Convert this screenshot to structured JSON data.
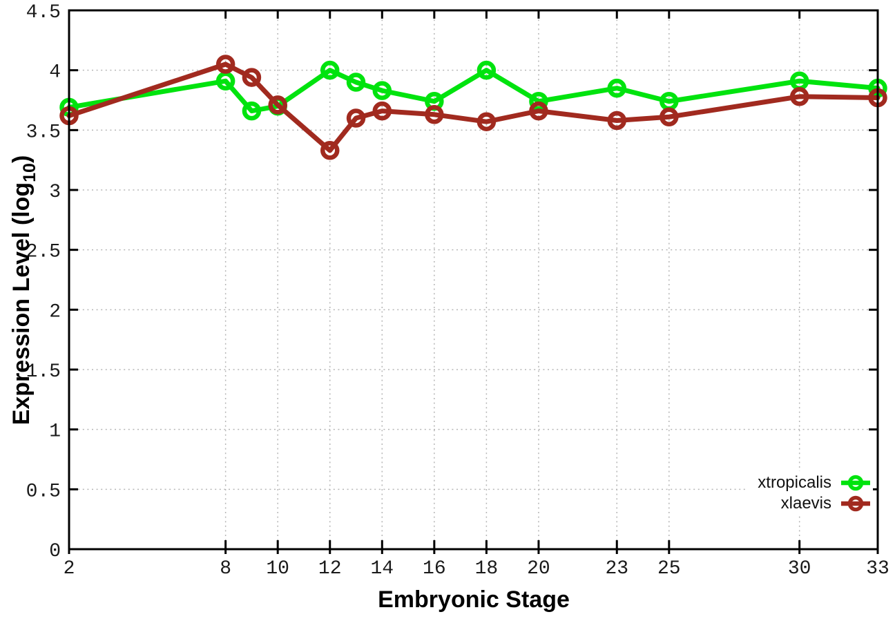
{
  "chart_data": {
    "type": "line",
    "title": "",
    "xlabel": "Embryonic Stage",
    "ylabel_parts": {
      "prefix": "Expression Level (log",
      "sub": "10",
      "suffix": ")"
    },
    "x": [
      2,
      8,
      9,
      10,
      12,
      13,
      14,
      16,
      18,
      20,
      23,
      25,
      30,
      33
    ],
    "xlim": [
      2,
      33
    ],
    "ylim": [
      0,
      4.5
    ],
    "xticks": [
      2,
      8,
      10,
      12,
      14,
      16,
      18,
      20,
      23,
      25,
      30,
      33
    ],
    "yticks": [
      0,
      0.5,
      1,
      1.5,
      2,
      2.5,
      3,
      3.5,
      4,
      4.5
    ],
    "grid": true,
    "legend_position": "bottom-right-inside",
    "background_color": "#ffffff",
    "series": [
      {
        "name": "xtropicalis",
        "color": "#00e30e",
        "marker": "open-circle",
        "values": [
          3.69,
          3.91,
          3.66,
          3.7,
          4.0,
          3.9,
          3.83,
          3.74,
          4.0,
          3.74,
          3.85,
          3.74,
          3.91,
          3.85
        ]
      },
      {
        "name": "xlaevis",
        "color": "#a12a1f",
        "marker": "open-circle",
        "values": [
          3.62,
          4.05,
          3.94,
          3.71,
          3.33,
          3.6,
          3.66,
          3.63,
          3.57,
          3.66,
          3.58,
          3.61,
          3.78,
          3.77
        ]
      }
    ]
  }
}
